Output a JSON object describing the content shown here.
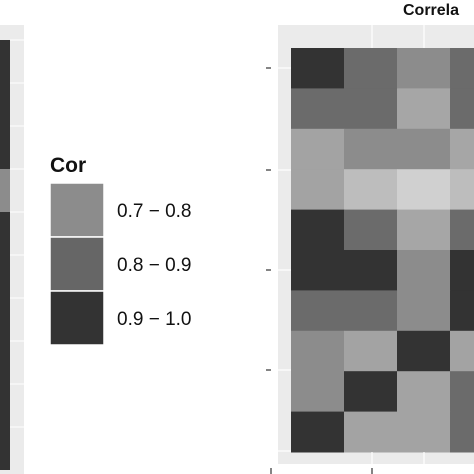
{
  "chart_data": [
    {
      "type": "heatmap",
      "title": "",
      "note": "left panel, cropped at image edge",
      "rows": [
        {
          "value_bin": "0.9 - 1.0"
        },
        {
          "value_bin": "0.9 - 1.0"
        },
        {
          "value_bin": "0.9 - 1.0"
        },
        {
          "value_bin": "0.7 - 0.8"
        },
        {
          "value_bin": "0.9 - 1.0"
        },
        {
          "value_bin": "0.9 - 1.0"
        },
        {
          "value_bin": "0.9 - 1.0"
        },
        {
          "value_bin": "0.9 - 1.0"
        },
        {
          "value_bin": "0.9 - 1.0"
        },
        {
          "value_bin": "0.9 - 1.0"
        }
      ]
    },
    {
      "type": "heatmap",
      "title": "Correla",
      "legend": {
        "title": "Cor",
        "position": "left",
        "bins": [
          {
            "label": "0.7 − 0.8",
            "color": "#8c8c8c"
          },
          {
            "label": "0.8 − 0.9",
            "color": "#666666"
          },
          {
            "label": "0.9 − 1.0",
            "color": "#333333"
          }
        ]
      },
      "grid": true,
      "panel_background": "#ebebeb",
      "cells": [
        [
          "#333333",
          "#6b6b6b",
          "#8c8c8c",
          "#6b6b6b",
          "#333333"
        ],
        [
          "#6b6b6b",
          "#6b6b6b",
          "#a6a6a6",
          "#6b6b6b",
          "#6b6b6b"
        ],
        [
          "#a3a3a3",
          "#8c8c8c",
          "#8c8c8c",
          "#a6a6a6",
          "#8c8c8c"
        ],
        [
          "#a3a3a3",
          "#bdbdbd",
          "#d0d0d0",
          "#bdbdbd",
          "#a6a6a6"
        ],
        [
          "#333333",
          "#6b6b6b",
          "#a6a6a6",
          "#6b6b6b",
          "#333333"
        ],
        [
          "#333333",
          "#333333",
          "#8c8c8c",
          "#333333",
          "#333333"
        ],
        [
          "#6b6b6b",
          "#6b6b6b",
          "#8c8c8c",
          "#333333",
          "#333333"
        ],
        [
          "#8c8c8c",
          "#a3a3a3",
          "#333333",
          "#a3a3a3",
          "#8c8c8c"
        ],
        [
          "#8c8c8c",
          "#333333",
          "#a3a3a3",
          "#6b6b6b",
          "#333333"
        ],
        [
          "#333333",
          "#a3a3a3",
          "#a3a3a3",
          "#6b6b6b",
          "#333333"
        ]
      ]
    }
  ]
}
